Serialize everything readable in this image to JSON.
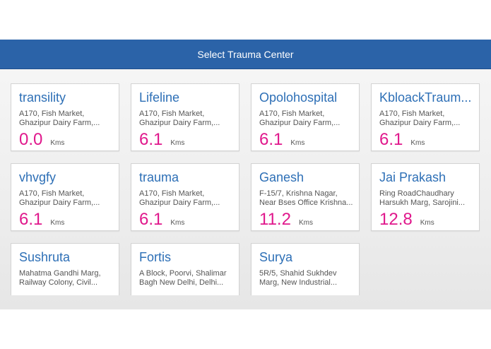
{
  "header": {
    "title": "Select Trauma Center"
  },
  "centers": [
    {
      "name": "transility",
      "address_line1": "A170, Fish Market,",
      "address_line2": "Ghazipur Dairy Farm,...",
      "distance": "0.0",
      "unit": "Kms"
    },
    {
      "name": "Lifeline",
      "address_line1": "A170, Fish Market,",
      "address_line2": "Ghazipur Dairy Farm,...",
      "distance": "6.1",
      "unit": "Kms"
    },
    {
      "name": "Opolohospital",
      "address_line1": "A170, Fish Market,",
      "address_line2": "Ghazipur Dairy Farm,...",
      "distance": "6.1",
      "unit": "Kms"
    },
    {
      "name": "KbloackTraum...",
      "address_line1": "A170, Fish Market,",
      "address_line2": "Ghazipur Dairy Farm,...",
      "distance": "6.1",
      "unit": "Kms"
    },
    {
      "name": "vhvgfy",
      "address_line1": "A170, Fish Market,",
      "address_line2": "Ghazipur Dairy Farm,...",
      "distance": "6.1",
      "unit": "Kms"
    },
    {
      "name": "trauma",
      "address_line1": "A170, Fish Market,",
      "address_line2": "Ghazipur Dairy Farm,...",
      "distance": "6.1",
      "unit": "Kms"
    },
    {
      "name": "Ganesh",
      "address_line1": "F-15/7, Krishna Nagar,",
      "address_line2": "Near Bses Office Krishna...",
      "distance": "11.2",
      "unit": "Kms"
    },
    {
      "name": "Jai Prakash",
      "address_line1": "Ring RoadChaudhary",
      "address_line2": "Harsukh Marg, Sarojini...",
      "distance": "12.8",
      "unit": "Kms"
    },
    {
      "name": "Sushruta",
      "address_line1": "Mahatma Gandhi Marg,",
      "address_line2": "Railway Colony, Civil...",
      "distance": "",
      "unit": ""
    },
    {
      "name": "Fortis",
      "address_line1": "A Block, Poorvi, Shalimar",
      "address_line2": "Bagh New Delhi, Delhi...",
      "distance": "",
      "unit": ""
    },
    {
      "name": "Surya",
      "address_line1": "5R/5, Shahid Sukhdev",
      "address_line2": "Marg, New Industrial...",
      "distance": "",
      "unit": ""
    }
  ]
}
